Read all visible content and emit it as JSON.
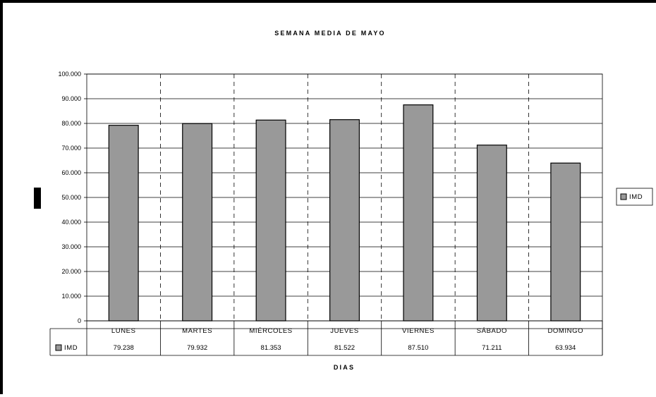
{
  "chart_data": {
    "type": "bar",
    "title": "SEMANA MEDIA DE MAYO",
    "xlabel": "DIAS",
    "ylabel": "",
    "categories": [
      "LUNES",
      "MARTES",
      "MIÉRCOLES",
      "JUEVES",
      "VIERNES",
      "SÁBADO",
      "DOMINGO"
    ],
    "series": [
      {
        "name": "IMD",
        "values": [
          79238,
          79932,
          81353,
          81522,
          87510,
          71211,
          63934
        ],
        "labels": [
          "79.238",
          "79.932",
          "81.353",
          "81.522",
          "87.510",
          "71.211",
          "63.934"
        ],
        "color": "#999999"
      }
    ],
    "ylim": [
      0,
      100000
    ],
    "yticks": [
      0,
      10000,
      20000,
      30000,
      40000,
      50000,
      60000,
      70000,
      80000,
      90000,
      100000
    ],
    "ytick_labels": [
      "0",
      "10.000",
      "20.000",
      "30.000",
      "40.000",
      "50.000",
      "60.000",
      "70.000",
      "80.000",
      "90.000",
      "100.000"
    ],
    "grid": "horizontal solid, vertical dashed category separators",
    "legend": "right",
    "data_table": true
  },
  "colors": {
    "bar_fill": "#999999",
    "outline": "#000000",
    "background": "#ffffff"
  }
}
